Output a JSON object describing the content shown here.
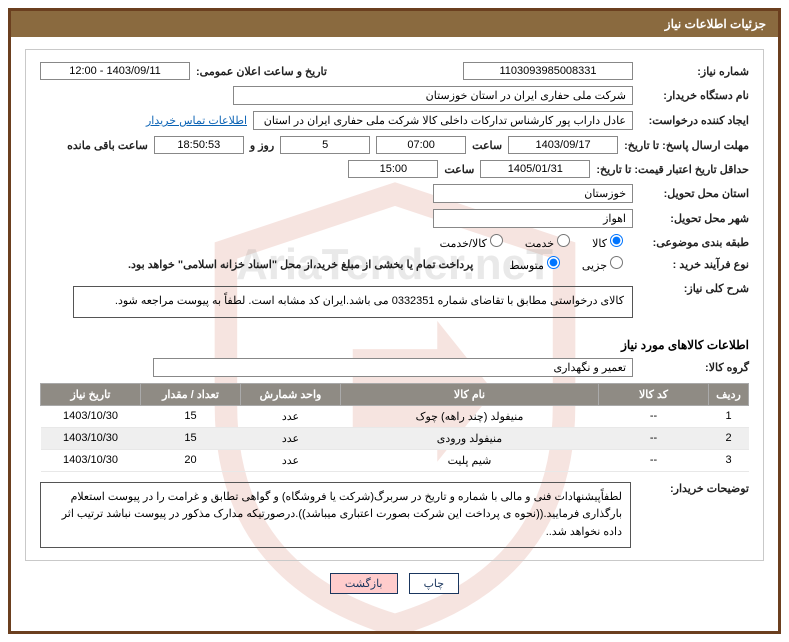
{
  "title_bar": "جزئیات اطلاعات نیاز",
  "labels": {
    "need_no": "شماره نیاز:",
    "announce_dt": "تاریخ و ساعت اعلان عمومی:",
    "buyer_org": "نام دستگاه خریدار:",
    "requester": "ایجاد کننده درخواست:",
    "contact_link": "اطلاعات تماس خریدار",
    "response_deadline": "مهلت ارسال پاسخ: تا تاریخ:",
    "time": "ساعت",
    "days_and": "روز و",
    "remaining": "ساعت باقی مانده",
    "price_validity": "حداقل تاریخ اعتبار قیمت: تا تاریخ:",
    "delivery_province": "استان محل تحویل:",
    "delivery_city": "شهر محل تحویل:",
    "subject_class": "طبقه بندی موضوعی:",
    "purchase_type": "نوع فرآیند خرید :",
    "overall_desc": "شرح کلی نیاز:",
    "items_info": "اطلاعات کالاهای مورد نیاز",
    "item_group": "گروه کالا:",
    "buyer_notes": "توضیحات خریدار:",
    "btn_print": "چاپ",
    "btn_back": "بازگشت"
  },
  "values": {
    "need_no": "1103093985008331",
    "announce_dt": "1403/09/11 - 12:00",
    "buyer_org": "شرکت ملی حفاری ایران در استان خوزستان",
    "requester": "عادل داراب پور کارشناس تدارکات داخلی کالا شرکت ملی حفاری ایران در استان",
    "response_date": "1403/09/17",
    "response_time": "07:00",
    "remaining_days": "5",
    "remaining_clock": "18:50:53",
    "price_validity_date": "1405/01/31",
    "price_validity_time": "15:00",
    "delivery_province": "خوزستان",
    "delivery_city": "اهواز",
    "item_group": "تعمیر و نگهداری",
    "overall_desc": "کالای درخواستی مطابق با تقاضای شماره 0332351 می باشد.ایران کد مشابه است. لطفاً به پیوست مراجعه شود.",
    "purchase_note": "پرداخت تمام یا بخشی از مبلغ خرید،از محل \"اسناد خزانه اسلامی\" خواهد بود.",
    "buyer_notes": "لطفاًپیشنهادات فنی و مالی با شماره و تاریخ در سربرگ(شرکت یا فروشگاه) و گواهی تطابق و غرامت را در پیوست استعلام بارگذاری فرمایید.((نحوه ی پرداخت این شرکت بصورت اعتباری میباشد)).درصورتیکه مدارک مذکور در پیوست نباشد ترتیب اثر داده نخواهد شد.."
  },
  "radios": {
    "subject": [
      {
        "label": "کالا",
        "checked": true
      },
      {
        "label": "خدمت",
        "checked": false
      },
      {
        "label": "کالا/خدمت",
        "checked": false
      }
    ],
    "purchase": [
      {
        "label": "جزیی",
        "checked": false
      },
      {
        "label": "متوسط",
        "checked": true
      }
    ]
  },
  "table": {
    "columns": [
      "ردیف",
      "کد کالا",
      "نام کالا",
      "واحد شمارش",
      "تعداد / مقدار",
      "تاریخ نیاز"
    ],
    "col_widths": [
      "40px",
      "110px",
      "auto",
      "100px",
      "100px",
      "100px"
    ],
    "rows": [
      [
        "1",
        "--",
        "منیفولد (چند راهه) چوک",
        "عدد",
        "15",
        "1403/10/30"
      ],
      [
        "2",
        "--",
        "منیفولد ورودی",
        "عدد",
        "15",
        "1403/10/30"
      ],
      [
        "3",
        "--",
        "شیم پلیت",
        "عدد",
        "20",
        "1403/10/30"
      ]
    ]
  },
  "colors": {
    "frame_border": "#6b3f1f",
    "title_bg": "#8a6a3f",
    "title_fg": "#ffffff",
    "th_bg": "#8f8b84",
    "link": "#0b63b5",
    "btn_back_bg": "#ffcccc"
  }
}
